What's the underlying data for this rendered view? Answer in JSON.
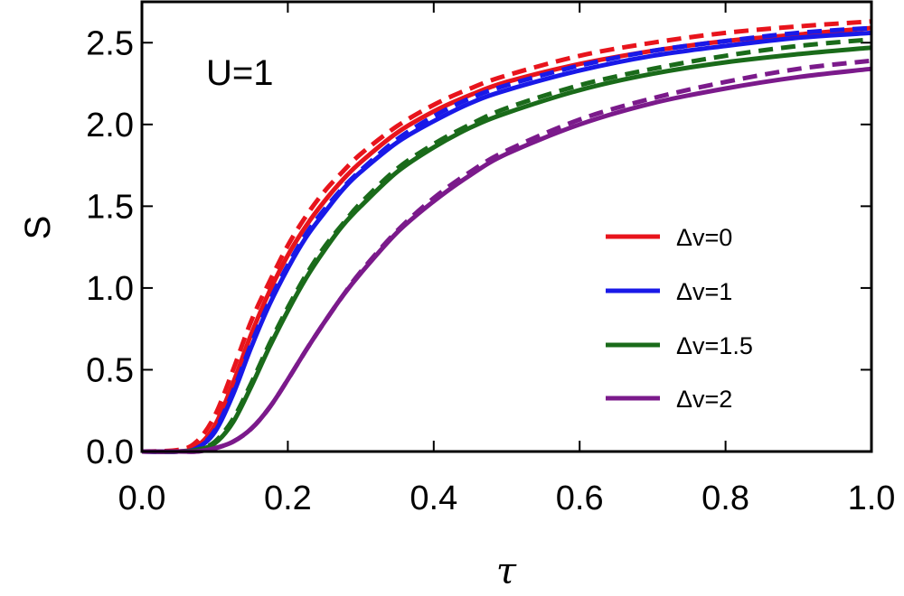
{
  "chart_data": {
    "type": "line",
    "title": "",
    "xlabel": "τ",
    "ylabel": "S",
    "annotation": "U=1",
    "xlim": [
      0,
      1
    ],
    "ylim": [
      0,
      2.75
    ],
    "xticks": [
      0,
      0.2,
      0.4,
      0.6,
      0.8,
      1.0
    ],
    "xtick_labels": [
      "0.0",
      "0.2",
      "0.4",
      "0.6",
      "0.8",
      "1.0"
    ],
    "yticks": [
      0,
      0.5,
      1.0,
      1.5,
      2.0,
      2.5
    ],
    "ytick_labels": [
      "0.0",
      "0.5",
      "1.0",
      "1.5",
      "2.0",
      "2.5"
    ],
    "grid": false,
    "legend_position": "right",
    "x": [
      0,
      0.05,
      0.075,
      0.1,
      0.125,
      0.15,
      0.175,
      0.2,
      0.225,
      0.25,
      0.275,
      0.3,
      0.35,
      0.4,
      0.45,
      0.5,
      0.6,
      0.7,
      0.8,
      0.9,
      1.0
    ],
    "series": [
      {
        "name": "Δv=0",
        "color": "#e8141c",
        "style": "solid",
        "values": [
          0,
          0.0,
          0.03,
          0.16,
          0.42,
          0.72,
          0.98,
          1.2,
          1.38,
          1.53,
          1.66,
          1.77,
          1.95,
          2.08,
          2.18,
          2.26,
          2.37,
          2.45,
          2.51,
          2.55,
          2.59
        ]
      },
      {
        "name": "Δv=0 (dashed)",
        "color": "#e8141c",
        "style": "dashed",
        "values": [
          0,
          0.01,
          0.06,
          0.22,
          0.5,
          0.8,
          1.04,
          1.26,
          1.44,
          1.59,
          1.71,
          1.82,
          1.99,
          2.12,
          2.22,
          2.3,
          2.42,
          2.5,
          2.56,
          2.6,
          2.63
        ]
      },
      {
        "name": "Δv=1",
        "color": "#1919e8",
        "style": "solid",
        "values": [
          0,
          0.0,
          0.02,
          0.12,
          0.35,
          0.64,
          0.9,
          1.12,
          1.31,
          1.46,
          1.6,
          1.71,
          1.89,
          2.02,
          2.13,
          2.21,
          2.33,
          2.42,
          2.48,
          2.53,
          2.56
        ]
      },
      {
        "name": "Δv=1 (dashed)",
        "color": "#1919e8",
        "style": "dashed",
        "values": [
          0,
          0.0,
          0.02,
          0.13,
          0.37,
          0.66,
          0.92,
          1.14,
          1.33,
          1.48,
          1.61,
          1.72,
          1.91,
          2.05,
          2.16,
          2.24,
          2.36,
          2.45,
          2.51,
          2.56,
          2.59
        ]
      },
      {
        "name": "Δv=1.5",
        "color": "#1a6b1a",
        "style": "solid",
        "values": [
          0,
          0.0,
          0.01,
          0.05,
          0.18,
          0.4,
          0.64,
          0.86,
          1.06,
          1.23,
          1.38,
          1.5,
          1.71,
          1.86,
          1.98,
          2.07,
          2.21,
          2.31,
          2.38,
          2.43,
          2.47
        ]
      },
      {
        "name": "Δv=1.5 (dashed)",
        "color": "#1a6b1a",
        "style": "dashed",
        "values": [
          0,
          0.0,
          0.01,
          0.06,
          0.2,
          0.42,
          0.66,
          0.88,
          1.08,
          1.25,
          1.39,
          1.52,
          1.73,
          1.88,
          2.0,
          2.1,
          2.24,
          2.34,
          2.42,
          2.48,
          2.52
        ]
      },
      {
        "name": "Δv=2",
        "color": "#7b1a8b",
        "style": "solid",
        "values": [
          0,
          0.0,
          0.0,
          0.02,
          0.06,
          0.14,
          0.27,
          0.44,
          0.62,
          0.79,
          0.95,
          1.09,
          1.34,
          1.53,
          1.69,
          1.82,
          2.0,
          2.13,
          2.22,
          2.29,
          2.34
        ]
      },
      {
        "name": "Δv=2 (dashed)",
        "color": "#7b1a8b",
        "style": "dashed",
        "values": [
          0,
          0.0,
          0.0,
          0.02,
          0.06,
          0.14,
          0.27,
          0.44,
          0.62,
          0.79,
          0.95,
          1.1,
          1.35,
          1.55,
          1.71,
          1.84,
          2.03,
          2.16,
          2.26,
          2.34,
          2.39
        ]
      }
    ],
    "legend": [
      {
        "label": "Δv=0",
        "color": "#e8141c"
      },
      {
        "label": "Δv=1",
        "color": "#1919e8"
      },
      {
        "label": "Δv=1.5",
        "color": "#1a6b1a"
      },
      {
        "label": "Δv=2",
        "color": "#7b1a8b"
      }
    ]
  }
}
